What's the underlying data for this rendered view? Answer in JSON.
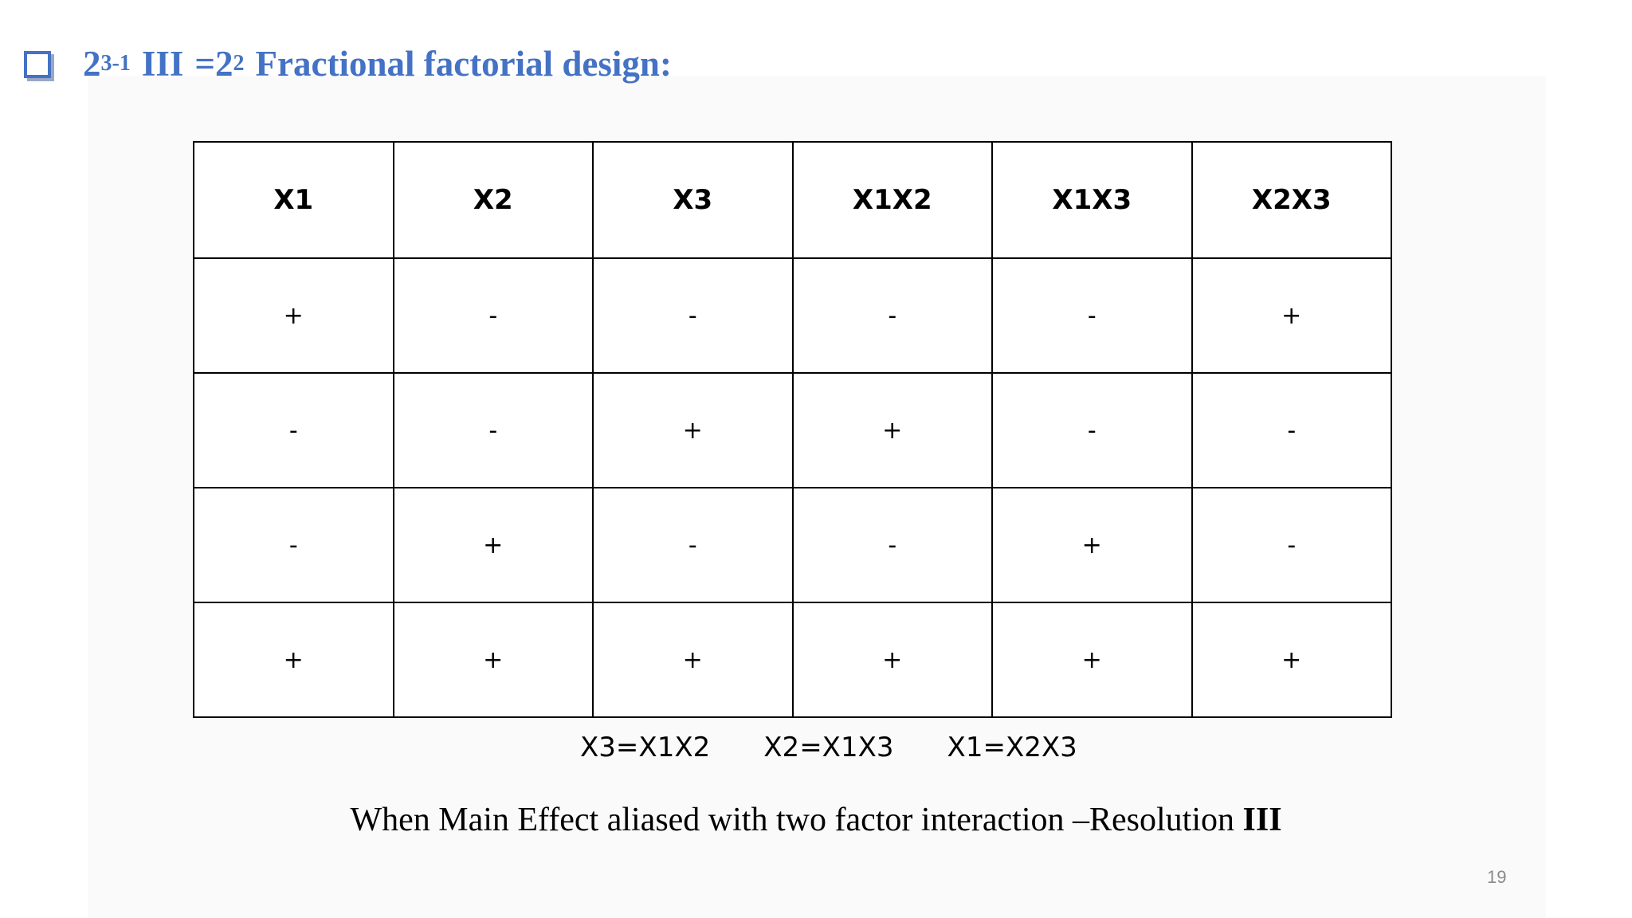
{
  "slide": {
    "heading": {
      "base": "2",
      "exponent": "3-1",
      "resolution": "III",
      "equals": "=2",
      "equals_exponent": "2",
      "text": "Fractional factorial design:"
    },
    "table": {
      "headers": [
        "X1",
        "X2",
        "X3",
        "X1X2",
        "X1X3",
        "X2X3"
      ],
      "rows": [
        [
          "+",
          "-",
          "-",
          "-",
          "-",
          "+"
        ],
        [
          "-",
          "-",
          "+",
          "+",
          "-",
          "-"
        ],
        [
          "-",
          "+",
          "-",
          "-",
          "+",
          "-"
        ],
        [
          "+",
          "+",
          "+",
          "+",
          "+",
          "+"
        ]
      ]
    },
    "aliases": [
      "X3=X1X2",
      "X2=X1X3",
      "X1=X2X3"
    ],
    "caption": {
      "text": "When Main Effect aliased with two factor interaction –Resolution ",
      "bold": "III"
    },
    "page_number": "19"
  },
  "colors": {
    "heading": "#4472c4",
    "text": "#000000",
    "page_number": "#8a8a8a"
  },
  "icons": {
    "bullet": "hollow-square-bullet-icon"
  }
}
